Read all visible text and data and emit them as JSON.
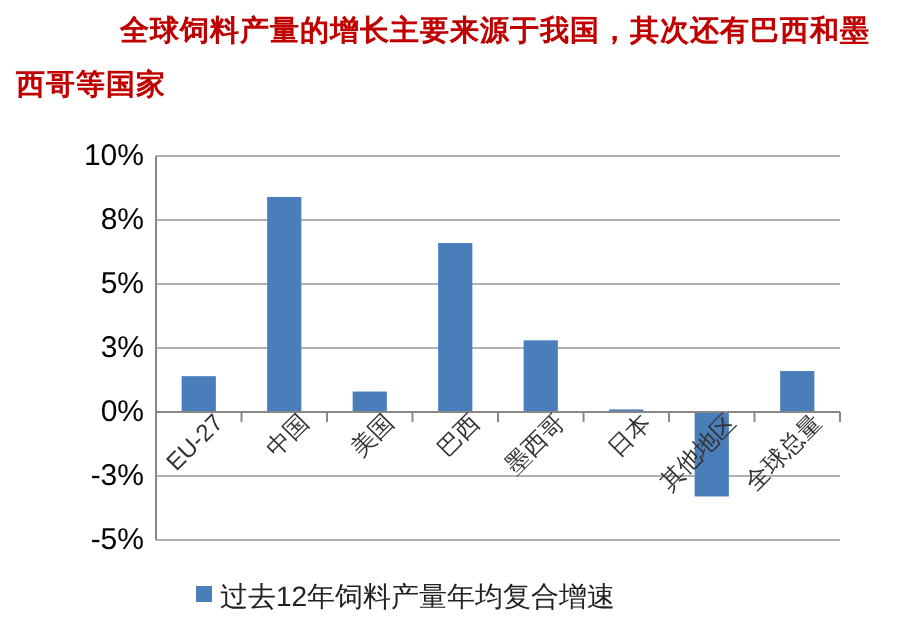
{
  "chart_data": {
    "type": "bar",
    "title": "全球饲料产量的增长主要来源于我国，其次还有巴西和墨西哥等国家",
    "categories": [
      "EU-27",
      "中国",
      "美国",
      "巴西",
      "墨西哥",
      "日本",
      "其他地区",
      "全球总量"
    ],
    "series": [
      {
        "name": "过去12年饲料产量年均复合增速",
        "color": "#4a7ebb",
        "values": [
          1.4,
          8.4,
          0.8,
          6.6,
          2.8,
          0.1,
          -3.3,
          1.6
        ]
      }
    ],
    "ylim": [
      -5,
      10
    ],
    "yticks": [
      {
        "value": -5,
        "label": "-5%"
      },
      {
        "value": -2.5,
        "label": "-3%"
      },
      {
        "value": 0,
        "label": "0%"
      },
      {
        "value": 2.5,
        "label": "3%"
      },
      {
        "value": 5,
        "label": "5%"
      },
      {
        "value": 7.5,
        "label": "8%"
      },
      {
        "value": 10,
        "label": "10%"
      }
    ],
    "grid": "y",
    "legend": "bottom"
  }
}
